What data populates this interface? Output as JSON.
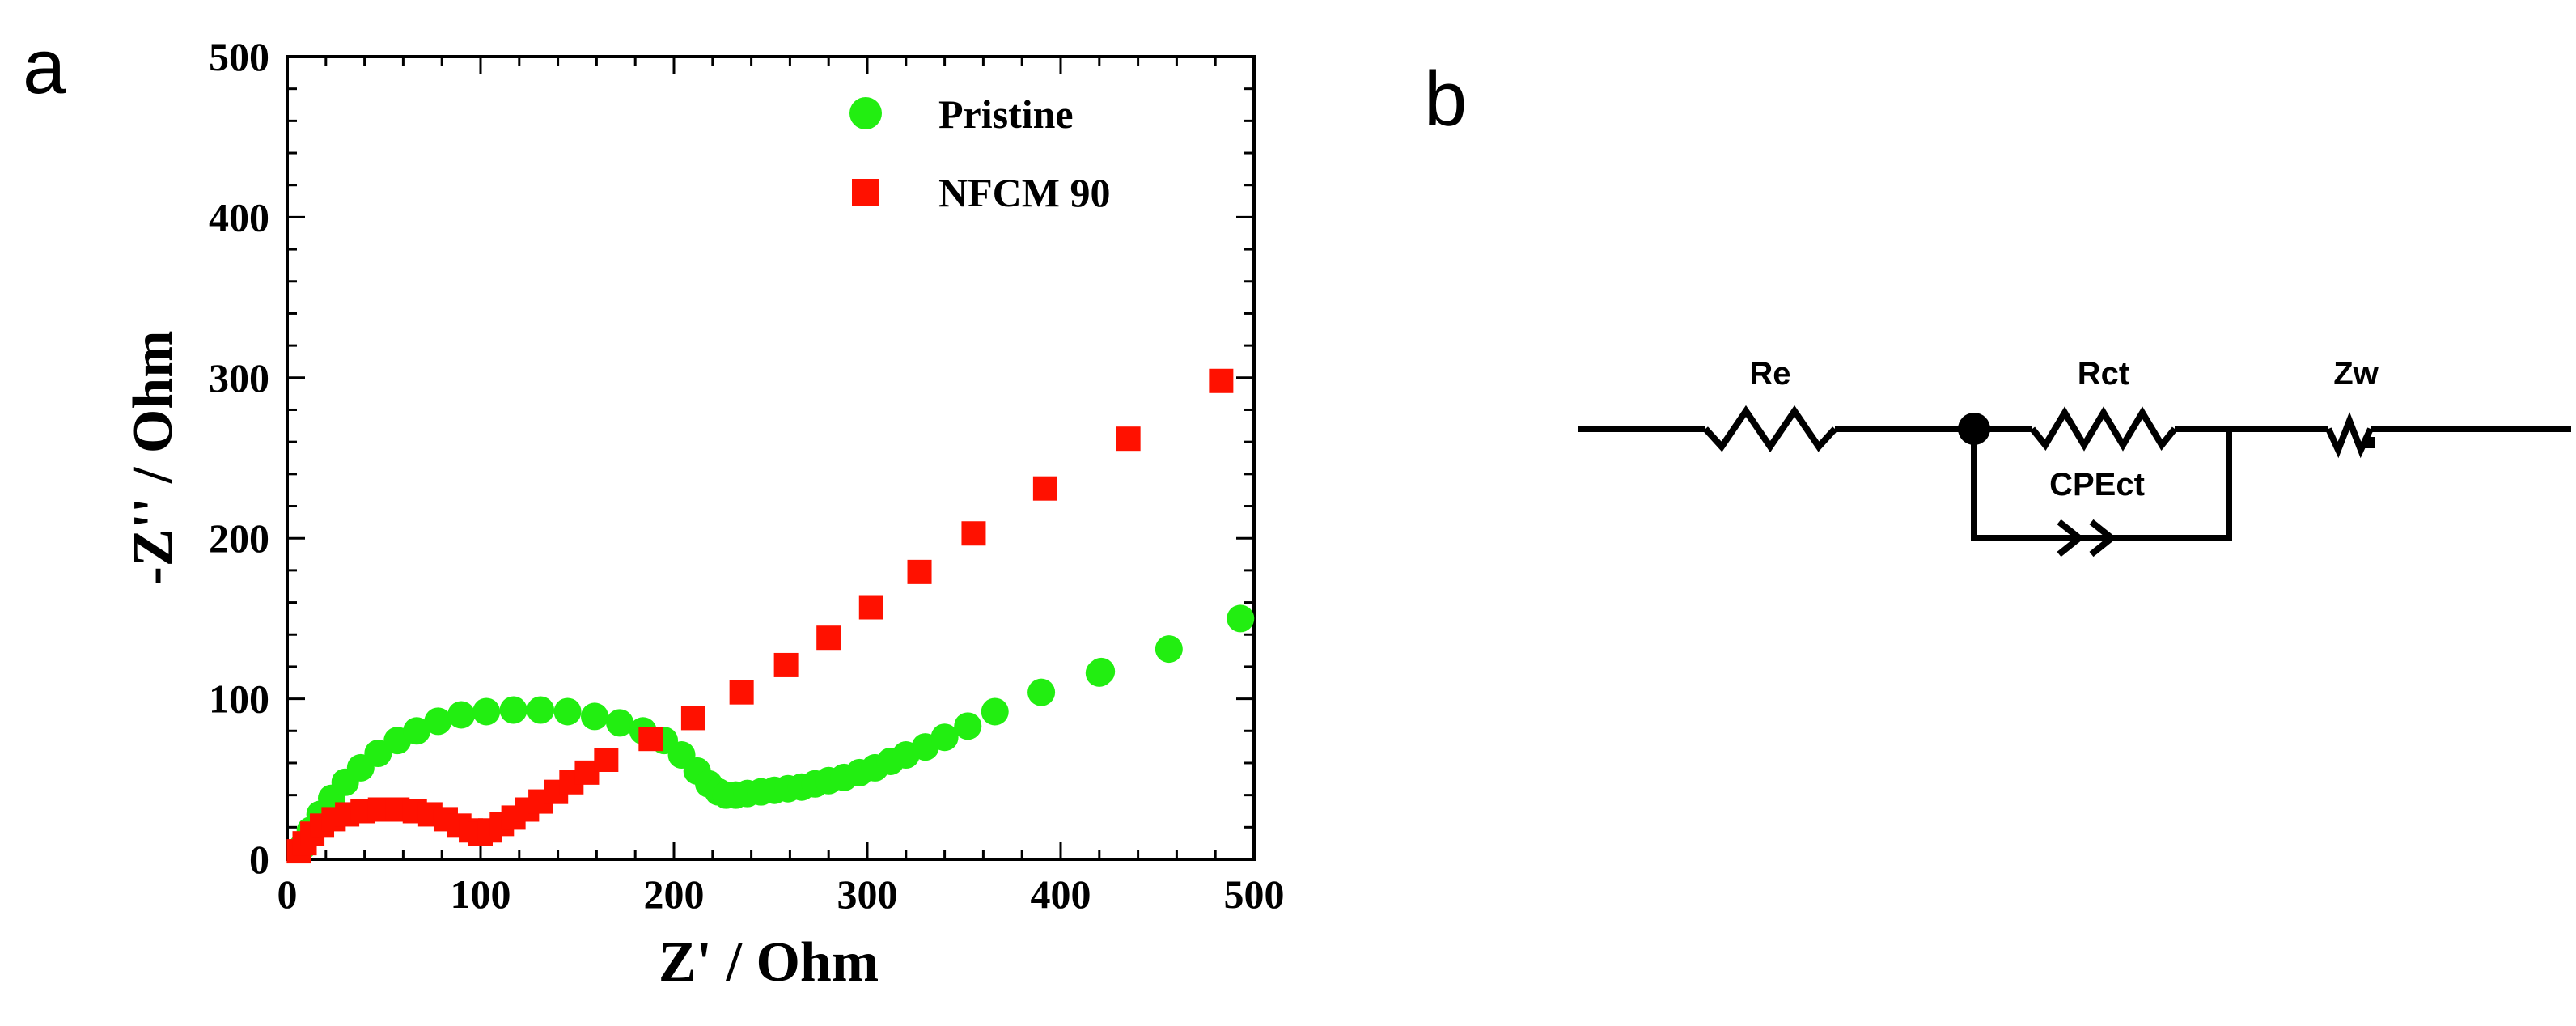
{
  "panels": {
    "a": "a",
    "b": "b"
  },
  "chart_data": {
    "type": "scatter",
    "title": "",
    "xlabel": "Z' / Ohm",
    "ylabel": "-Z'' / Ohm",
    "xlim": [
      0,
      500
    ],
    "ylim": [
      0,
      500
    ],
    "xticks": [
      0,
      100,
      200,
      300,
      400,
      500
    ],
    "yticks": [
      0,
      100,
      200,
      300,
      400,
      500
    ],
    "grid": false,
    "legend_position": "top-right",
    "series": [
      {
        "name": "Pristine",
        "marker": "circle",
        "color": "#22ee11",
        "x": [
          8,
          12,
          17,
          23,
          30,
          38,
          47,
          57,
          67,
          78,
          90,
          103,
          117,
          131,
          145,
          159,
          172,
          184,
          195,
          204,
          212,
          218,
          223,
          227,
          232,
          238,
          245,
          252,
          259,
          266,
          273,
          280,
          288,
          296,
          304,
          312,
          320,
          330,
          340,
          352,
          366,
          390,
          420,
          421,
          456,
          493
        ],
        "y": [
          8,
          18,
          28,
          38,
          48,
          57,
          66,
          74,
          80,
          86,
          90,
          92,
          93,
          93,
          92,
          89,
          85,
          80,
          74,
          65,
          55,
          47,
          42,
          40,
          40,
          41,
          42,
          43,
          44,
          45,
          47,
          49,
          51,
          54,
          57,
          61,
          65,
          70,
          76,
          83,
          92,
          104,
          116,
          117,
          131,
          150
        ]
      },
      {
        "name": "NFCM 90",
        "marker": "square",
        "color": "#ff1100",
        "x": [
          6,
          9,
          13,
          18,
          24,
          31,
          39,
          48,
          57,
          66,
          74,
          82,
          89,
          95,
          100,
          105,
          111,
          117,
          124,
          131,
          139,
          147,
          155,
          165,
          188,
          210,
          235,
          258,
          280,
          302,
          327,
          355,
          392,
          435,
          483
        ],
        "y": [
          5,
          10,
          16,
          21,
          25,
          28,
          30,
          31,
          31,
          30,
          28,
          25,
          21,
          18,
          16,
          18,
          22,
          26,
          31,
          36,
          42,
          48,
          54,
          62,
          75,
          88,
          104,
          121,
          138,
          157,
          179,
          203,
          231,
          262,
          298
        ]
      }
    ]
  },
  "circuit": {
    "elements": [
      {
        "name": "re",
        "label": "Re"
      },
      {
        "name": "rct",
        "label": "Rct"
      },
      {
        "name": "zw",
        "label": "Zw"
      },
      {
        "name": "cpect",
        "label": "CPEct"
      }
    ]
  }
}
